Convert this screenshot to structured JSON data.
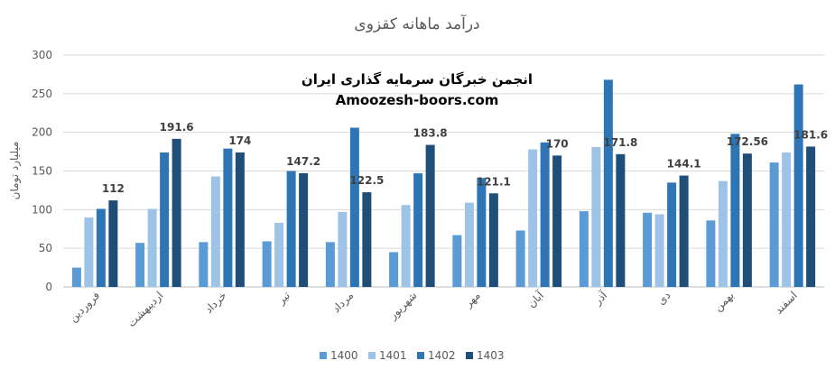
{
  "chart_data": {
    "type": "bar",
    "title": "درآمد ماهانه کقزوی",
    "ylabel": "میلیارد تومان",
    "xlabel": "",
    "ylim": [
      0,
      300
    ],
    "yticks": [
      0,
      50,
      100,
      150,
      200,
      250,
      300
    ],
    "grid": true,
    "legend_position": "bottom",
    "categories": [
      "فروردین",
      "اردیبهشت",
      "خرداد",
      "تیر",
      "مرداد",
      "شهریور",
      "مهر",
      "آبان",
      "آذر",
      "دی",
      "بهمن",
      "اسفند"
    ],
    "series": [
      {
        "name": "1400",
        "color": "#5b9bd5",
        "values": [
          25,
          57,
          58,
          59,
          58,
          45,
          67,
          73,
          98,
          96,
          86,
          161
        ]
      },
      {
        "name": "1401",
        "color": "#9dc3e6",
        "values": [
          90,
          101,
          143,
          83,
          97,
          106,
          109,
          178,
          181,
          94,
          137,
          174
        ]
      },
      {
        "name": "1402",
        "color": "#2e75b6",
        "values": [
          101,
          174,
          179,
          150,
          206,
          147,
          141,
          187,
          268,
          135,
          198,
          262
        ]
      },
      {
        "name": "1403",
        "color": "#1f4e79",
        "values": [
          112,
          191.6,
          174,
          147.2,
          122.5,
          183.8,
          121.1,
          170,
          171.8,
          144.1,
          172.56,
          181.6
        ]
      }
    ],
    "data_labels": [
      "112",
      "191.6",
      "174",
      "147.2",
      "122.5",
      "183.8",
      "121.1",
      "170",
      "171.8",
      "144.1",
      "172.56",
      "181.6"
    ]
  },
  "watermark": {
    "line1": "انجمن خبرگان سرمایه گذاری ایران",
    "line2": "Amoozesh-boors.com"
  }
}
